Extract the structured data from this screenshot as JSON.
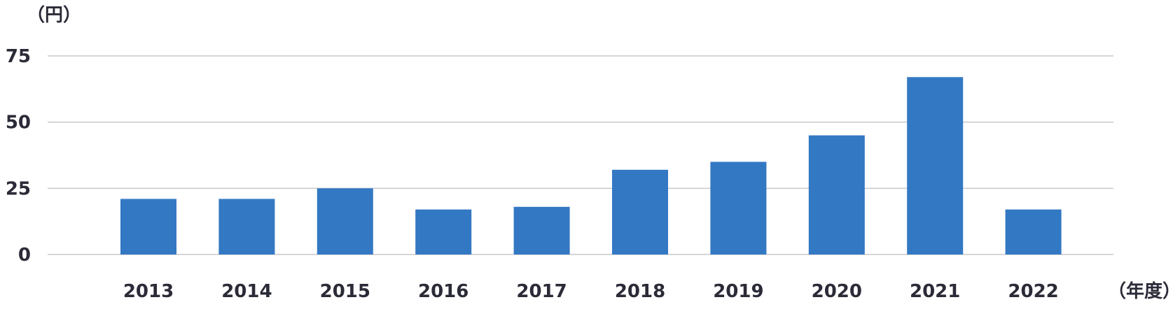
{
  "chart_data": {
    "type": "bar",
    "title": "",
    "ylabel": "（円）",
    "xlabel": "（年度）",
    "categories": [
      "2013",
      "2014",
      "2015",
      "2016",
      "2017",
      "2018",
      "2019",
      "2020",
      "2021",
      "2022"
    ],
    "values": [
      21,
      21,
      25,
      17,
      18,
      32,
      35,
      45,
      67,
      17
    ],
    "ylim": [
      0,
      75
    ],
    "yticks": [
      0,
      25,
      50,
      75
    ],
    "ytick_labels": [
      "0",
      "25",
      "50",
      "75"
    ],
    "grid": true,
    "legend": "none",
    "bar_color": "#3378c3",
    "grid_color": "#c8c8cc",
    "text_color": "#2b2b38"
  }
}
